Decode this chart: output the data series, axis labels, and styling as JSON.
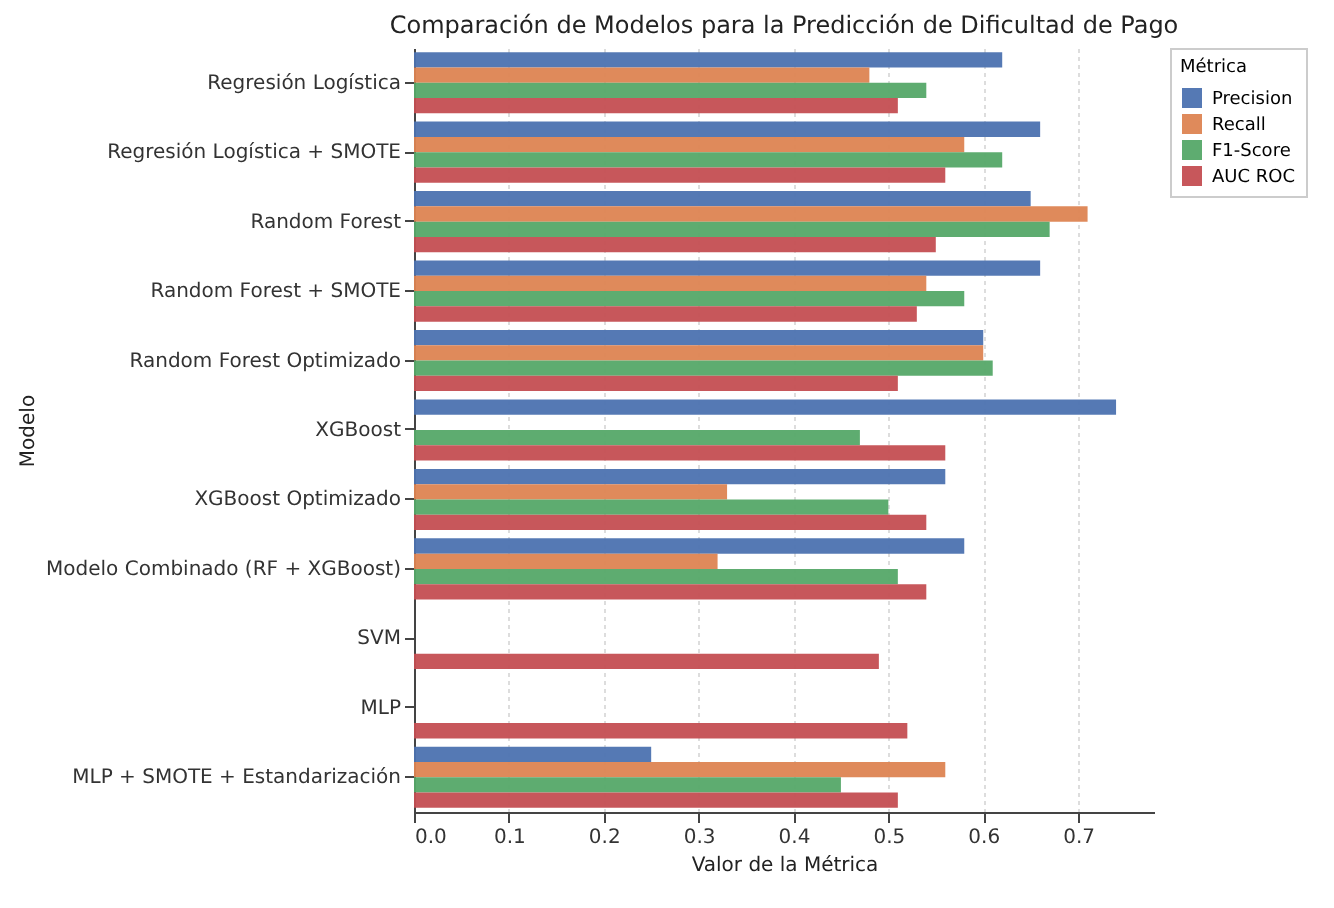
{
  "chart_data": {
    "type": "bar",
    "orientation": "horizontal",
    "title": "Comparación de Modelos para la Predicción de Dificultad de Pago",
    "xlabel": "Valor de la Métrica",
    "ylabel": "Modelo",
    "legend_title": "Métrica",
    "legend": "top right",
    "grid": "x",
    "xlim": [
      0,
      0.78
    ],
    "xticks": [
      {
        "value": 0,
        "label": "0.0"
      },
      0.1,
      0.2,
      0.3,
      0.4,
      0.5,
      0.6,
      0.7
    ],
    "categories": [
      "Regresión Logística",
      "Regresión Logística + SMOTE",
      "Random Forest",
      "Random Forest + SMOTE",
      "Random Forest Optimizado",
      "XGBoost",
      "XGBoost Optimizado",
      "Modelo Combinado (RF + XGBoost)",
      "SVM",
      "MLP",
      "MLP + SMOTE + Estandarización"
    ],
    "series": [
      {
        "name": "Precision",
        "color": "#4c72b0",
        "values": [
          0.62,
          0.66,
          0.65,
          0.66,
          0.6,
          0.74,
          0.56,
          0.58,
          0,
          0,
          0.25
        ]
      },
      {
        "name": "Recall",
        "color": "#dd8452",
        "values": [
          0.48,
          0.58,
          0.71,
          0.54,
          0.6,
          0,
          0.33,
          0.32,
          0,
          0,
          0.56
        ]
      },
      {
        "name": "F1-Score",
        "color": "#55a868",
        "values": [
          0.54,
          0.62,
          0.67,
          0.58,
          0.61,
          0.47,
          0.5,
          0.51,
          0,
          0,
          0.45
        ]
      },
      {
        "name": "AUC ROC",
        "color": "#c44e52",
        "values": [
          0.51,
          0.56,
          0.55,
          0.53,
          0.51,
          0.56,
          0.54,
          0.54,
          0.49,
          0.52,
          0.51
        ]
      }
    ]
  }
}
